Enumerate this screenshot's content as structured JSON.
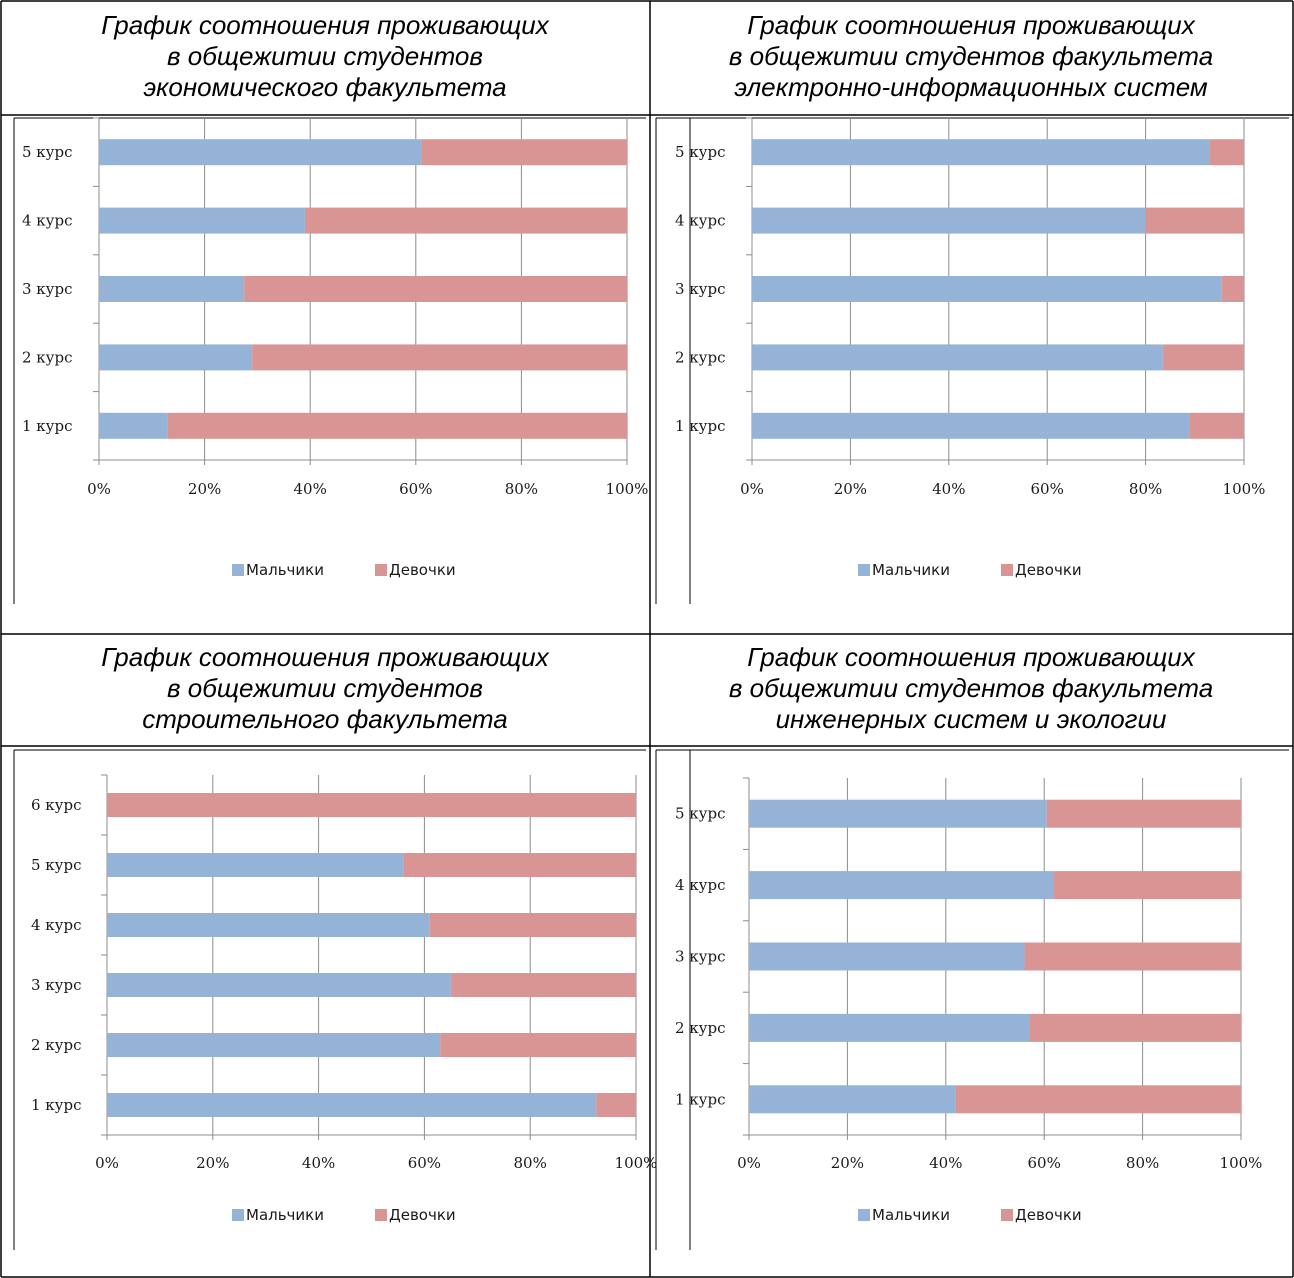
{
  "colors": {
    "boys": "#95b3d7",
    "girls": "#d99594",
    "grid": "#8c8c8c",
    "border": "#000000"
  },
  "legend": {
    "boys": "Мальчики",
    "girls": "Девочки"
  },
  "x_ticks": [
    "0%",
    "20%",
    "40%",
    "60%",
    "80%",
    "100%"
  ],
  "titles": [
    [
      "График соотношения проживающих",
      "в общежитии студентов",
      "экономического факультета"
    ],
    [
      "График соотношения проживающих",
      "в общежитии студентов факультета",
      "электронно-информационных систем"
    ],
    [
      "График соотношения проживающих",
      "в общежитии студентов",
      "строительного факультета"
    ],
    [
      "График соотношения проживающих",
      "в общежитии студентов факультета",
      "инженерных систем и экологии"
    ]
  ],
  "chart_data": [
    {
      "type": "bar",
      "orientation": "horizontal",
      "stacked": "percent",
      "title": "График соотношения проживающих в общежитии студентов экономического факультета",
      "categories": [
        "1 курс",
        "2 курс",
        "3 курс",
        "4 курс",
        "5 курс"
      ],
      "series": [
        {
          "name": "Мальчики",
          "values": [
            13,
            29,
            27.5,
            39,
            61
          ]
        },
        {
          "name": "Девочки",
          "values": [
            87,
            71,
            72.5,
            61,
            39
          ]
        }
      ],
      "xlim": [
        0,
        100
      ],
      "grid": true,
      "legend_position": "bottom"
    },
    {
      "type": "bar",
      "orientation": "horizontal",
      "stacked": "percent",
      "title": "График соотношения проживающих в общежитии студентов факультета электронно-информационных систем",
      "categories": [
        "1 курс",
        "2 курс",
        "3 курс",
        "4 курс",
        "5 курс"
      ],
      "series": [
        {
          "name": "Мальчики",
          "values": [
            89,
            83.5,
            95.5,
            80,
            93
          ]
        },
        {
          "name": "Девочки",
          "values": [
            11,
            16.5,
            4.5,
            20,
            7
          ]
        }
      ],
      "xlim": [
        0,
        100
      ],
      "grid": true,
      "legend_position": "bottom"
    },
    {
      "type": "bar",
      "orientation": "horizontal",
      "stacked": "percent",
      "title": "График соотношения проживающих в общежитии студентов строительного факультета",
      "categories": [
        "1 курс",
        "2 курс",
        "3 курс",
        "4 курс",
        "5 курс",
        "6 курс"
      ],
      "series": [
        {
          "name": "Мальчики",
          "values": [
            92.5,
            63,
            65,
            61,
            56,
            0
          ]
        },
        {
          "name": "Девочки",
          "values": [
            7.5,
            37,
            35,
            39,
            44,
            100
          ]
        }
      ],
      "xlim": [
        0,
        100
      ],
      "grid": true,
      "legend_position": "bottom"
    },
    {
      "type": "bar",
      "orientation": "horizontal",
      "stacked": "percent",
      "title": "График соотношения проживающих в общежитии студентов факультета инженерных систем и экологии",
      "categories": [
        "1 курс",
        "2 курс",
        "3 курс",
        "4 курс",
        "5 курс"
      ],
      "series": [
        {
          "name": "Мальчики",
          "values": [
            42,
            57,
            56,
            62,
            60.5
          ]
        },
        {
          "name": "Девочки",
          "values": [
            58,
            43,
            44,
            38,
            39.5
          ]
        }
      ],
      "xlim": [
        0,
        100
      ],
      "grid": true,
      "legend_position": "bottom"
    }
  ]
}
